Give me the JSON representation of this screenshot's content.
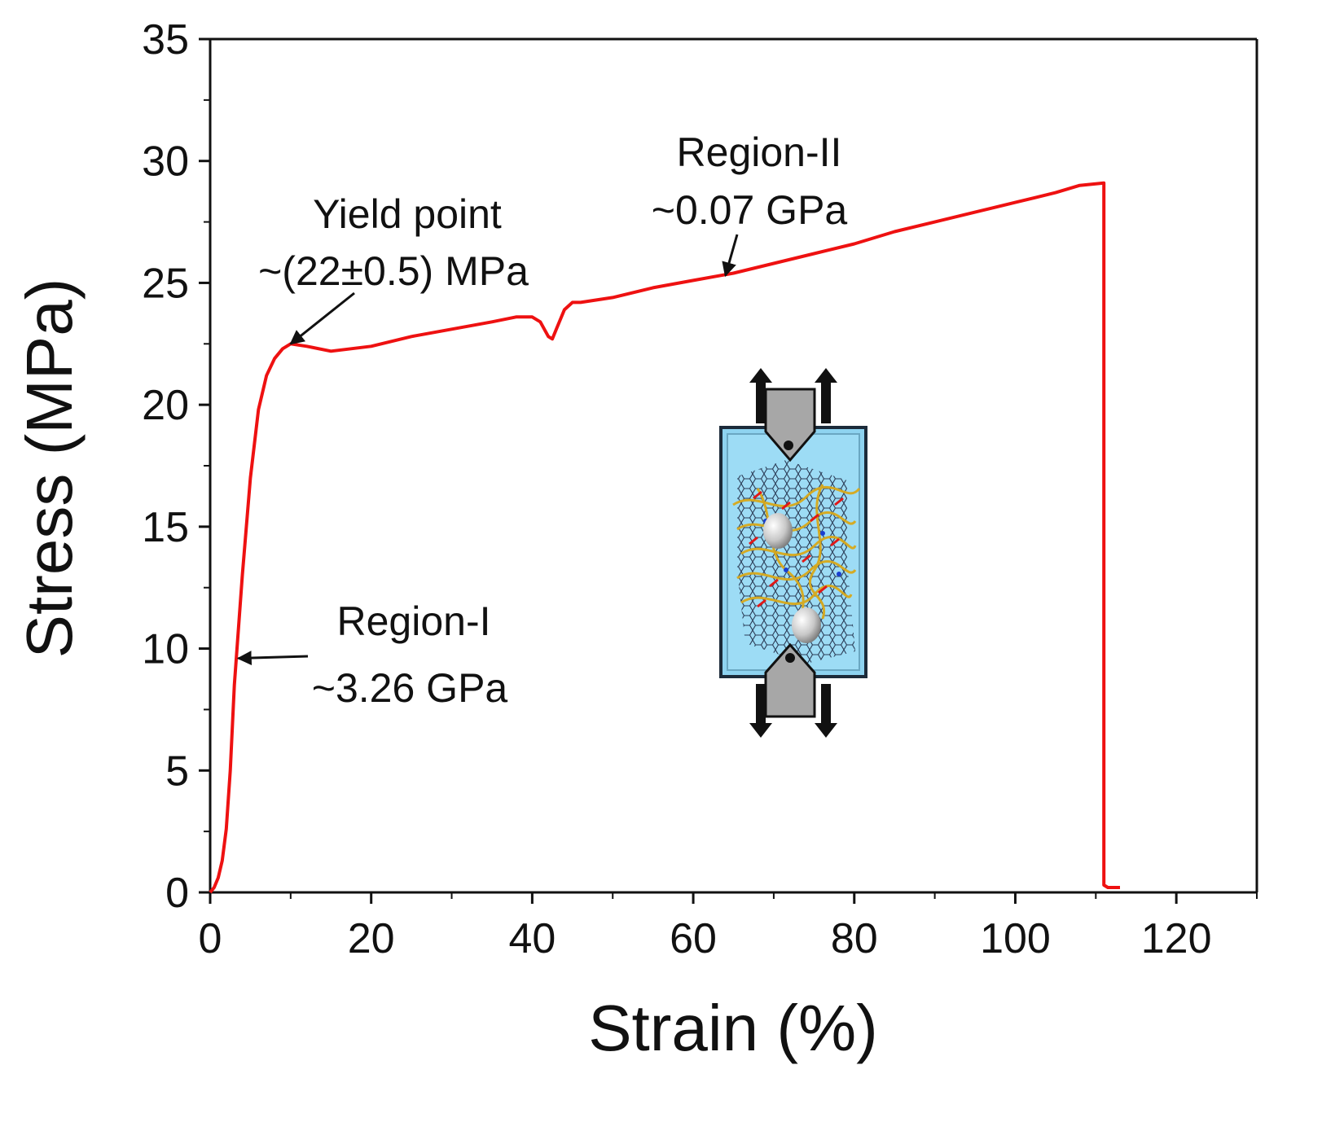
{
  "chart_data": {
    "type": "line",
    "xlabel": "Strain (%)",
    "ylabel": "Stress (MPa)",
    "xlim": [
      0,
      130
    ],
    "ylim": [
      0,
      35
    ],
    "xticks": [
      0,
      20,
      40,
      60,
      80,
      100,
      120
    ],
    "yticks": [
      0,
      5,
      10,
      15,
      20,
      25,
      30,
      35
    ],
    "grid": false,
    "series": [
      {
        "name": "stress-strain",
        "color": "#ee1111",
        "x": [
          0,
          0.5,
          1,
          1.5,
          2,
          2.5,
          3,
          4,
          5,
          6,
          7,
          8,
          9,
          10,
          12,
          15,
          20,
          25,
          30,
          35,
          38,
          40,
          41,
          42,
          42.5,
          43,
          44,
          45,
          46,
          48,
          50,
          55,
          60,
          65,
          70,
          75,
          80,
          85,
          90,
          95,
          100,
          105,
          108,
          111,
          111,
          111.5,
          112,
          113
        ],
        "y": [
          0,
          0.2,
          0.6,
          1.3,
          2.6,
          5.0,
          8.5,
          13.0,
          17.0,
          19.8,
          21.2,
          21.9,
          22.3,
          22.5,
          22.4,
          22.2,
          22.4,
          22.8,
          23.1,
          23.4,
          23.6,
          23.6,
          23.4,
          22.8,
          22.7,
          23.1,
          23.9,
          24.2,
          24.2,
          24.3,
          24.4,
          24.8,
          25.1,
          25.4,
          25.8,
          26.2,
          26.6,
          27.1,
          27.5,
          27.9,
          28.3,
          28.7,
          29.0,
          29.1,
          0.3,
          0.2,
          0.2,
          0.2
        ]
      }
    ],
    "annotations": [
      {
        "line1": "Yield point",
        "line2": "~(22±0.5) MPa",
        "target_x": 10,
        "target_y": 22.5
      },
      {
        "line1": "Region-II",
        "line2": "~0.07 GPa",
        "target_x": 64,
        "target_y": 25.3
      },
      {
        "line1": "Region-I",
        "line2": "~3.26 GPa",
        "target_x": 3.5,
        "target_y": 9.6
      }
    ],
    "inset": {
      "description": "tensile test schematic"
    }
  }
}
